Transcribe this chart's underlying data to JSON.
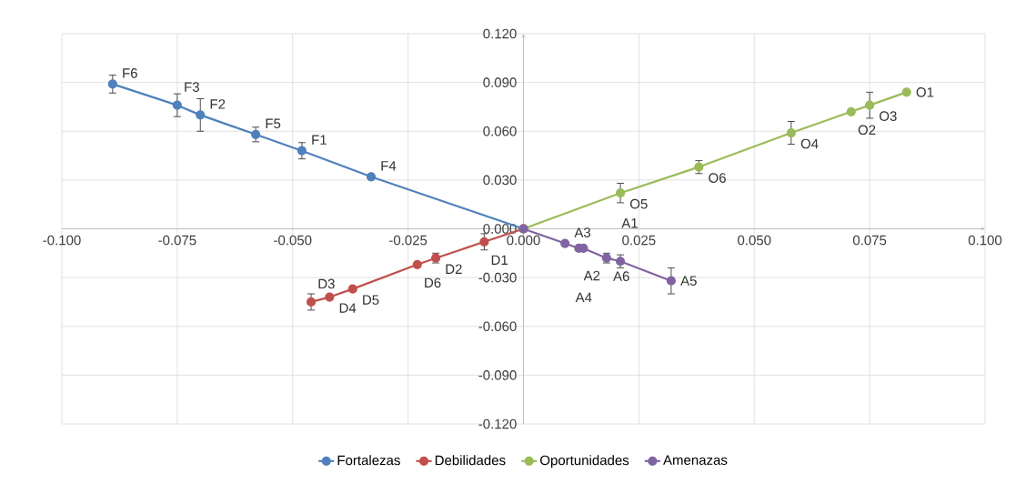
{
  "chart_data": {
    "type": "line",
    "series": [
      {
        "name": "Fortalezas",
        "color": "#4f81bd",
        "x": [
          0,
          -0.033,
          -0.048,
          -0.058,
          -0.07,
          -0.075,
          -0.089
        ],
        "values": [
          0,
          0.032,
          0.048,
          0.058,
          0.07,
          0.076,
          0.089
        ],
        "errors": [
          null,
          null,
          0.005,
          0.0045,
          0.01,
          0.007,
          0.0055
        ],
        "value_labels": [
          null,
          "F4",
          "F1",
          "F5",
          "F2",
          "F3",
          "F6"
        ]
      },
      {
        "name": "Debilidades",
        "color": "#c0504d",
        "x": [
          0,
          -0.0085,
          -0.019,
          -0.023,
          -0.037,
          -0.042,
          -0.046
        ],
        "values": [
          0,
          -0.008,
          -0.018,
          -0.022,
          -0.037,
          -0.042,
          -0.045
        ],
        "errors": [
          null,
          0.005,
          0.003,
          null,
          null,
          null,
          0.005
        ],
        "value_labels": [
          null,
          "D1",
          "D2",
          "D6",
          "D5",
          "D4",
          "D3"
        ]
      },
      {
        "name": "Oportunidades",
        "color": "#9bbb59",
        "x": [
          0,
          0.021,
          0.038,
          0.058,
          0.071,
          0.075,
          0.083
        ],
        "values": [
          0,
          0.022,
          0.038,
          0.059,
          0.072,
          0.076,
          0.084
        ],
        "errors": [
          null,
          0.006,
          0.004,
          0.007,
          null,
          0.008,
          null
        ],
        "value_labels": [
          null,
          "O5",
          "O6",
          "O4",
          "O2",
          "O3",
          "O1"
        ]
      },
      {
        "name": "Amenazas",
        "color": "#8064a2",
        "x": [
          0,
          0.009,
          0.012,
          0.013,
          0.018,
          0.021,
          0.032
        ],
        "values": [
          0,
          -0.009,
          -0.012,
          -0.012,
          -0.018,
          -0.02,
          -0.032
        ],
        "errors": [
          null,
          null,
          null,
          null,
          0.003,
          0.004,
          0.008
        ],
        "value_labels": [
          null,
          "A3",
          "A2",
          "A4",
          "A6",
          "A1",
          "A5"
        ]
      }
    ],
    "xlim": [
      -0.1,
      0.1
    ],
    "xticks": [
      {
        "value": -0.1,
        "label": "-0.100"
      },
      {
        "value": -0.075,
        "label": "-0.075"
      },
      {
        "value": -0.05,
        "label": "-0.050"
      },
      {
        "value": -0.025,
        "label": "-0.025"
      },
      {
        "value": 0,
        "label": "0.000"
      },
      {
        "value": 0.025,
        "label": "0.025"
      },
      {
        "value": 0.05,
        "label": "0.050"
      },
      {
        "value": 0.075,
        "label": "0.075"
      },
      {
        "value": 0.1,
        "label": "0.100"
      }
    ],
    "ylim": [
      -0.12,
      0.12
    ],
    "yticks": [
      {
        "value": -0.12,
        "label": "-0.120"
      },
      {
        "value": -0.09,
        "label": "-0.090"
      },
      {
        "value": -0.06,
        "label": "-0.060"
      },
      {
        "value": -0.03,
        "label": "-0.030"
      },
      {
        "value": 0,
        "label": "0.000"
      },
      {
        "value": 0.03,
        "label": "0.030"
      },
      {
        "value": 0.06,
        "label": "0.060"
      },
      {
        "value": 0.09,
        "label": "0.090"
      },
      {
        "value": 0.12,
        "label": "0.120"
      }
    ],
    "grid": true,
    "legend": "bottom",
    "marker": "circle",
    "line_style": "solid"
  }
}
